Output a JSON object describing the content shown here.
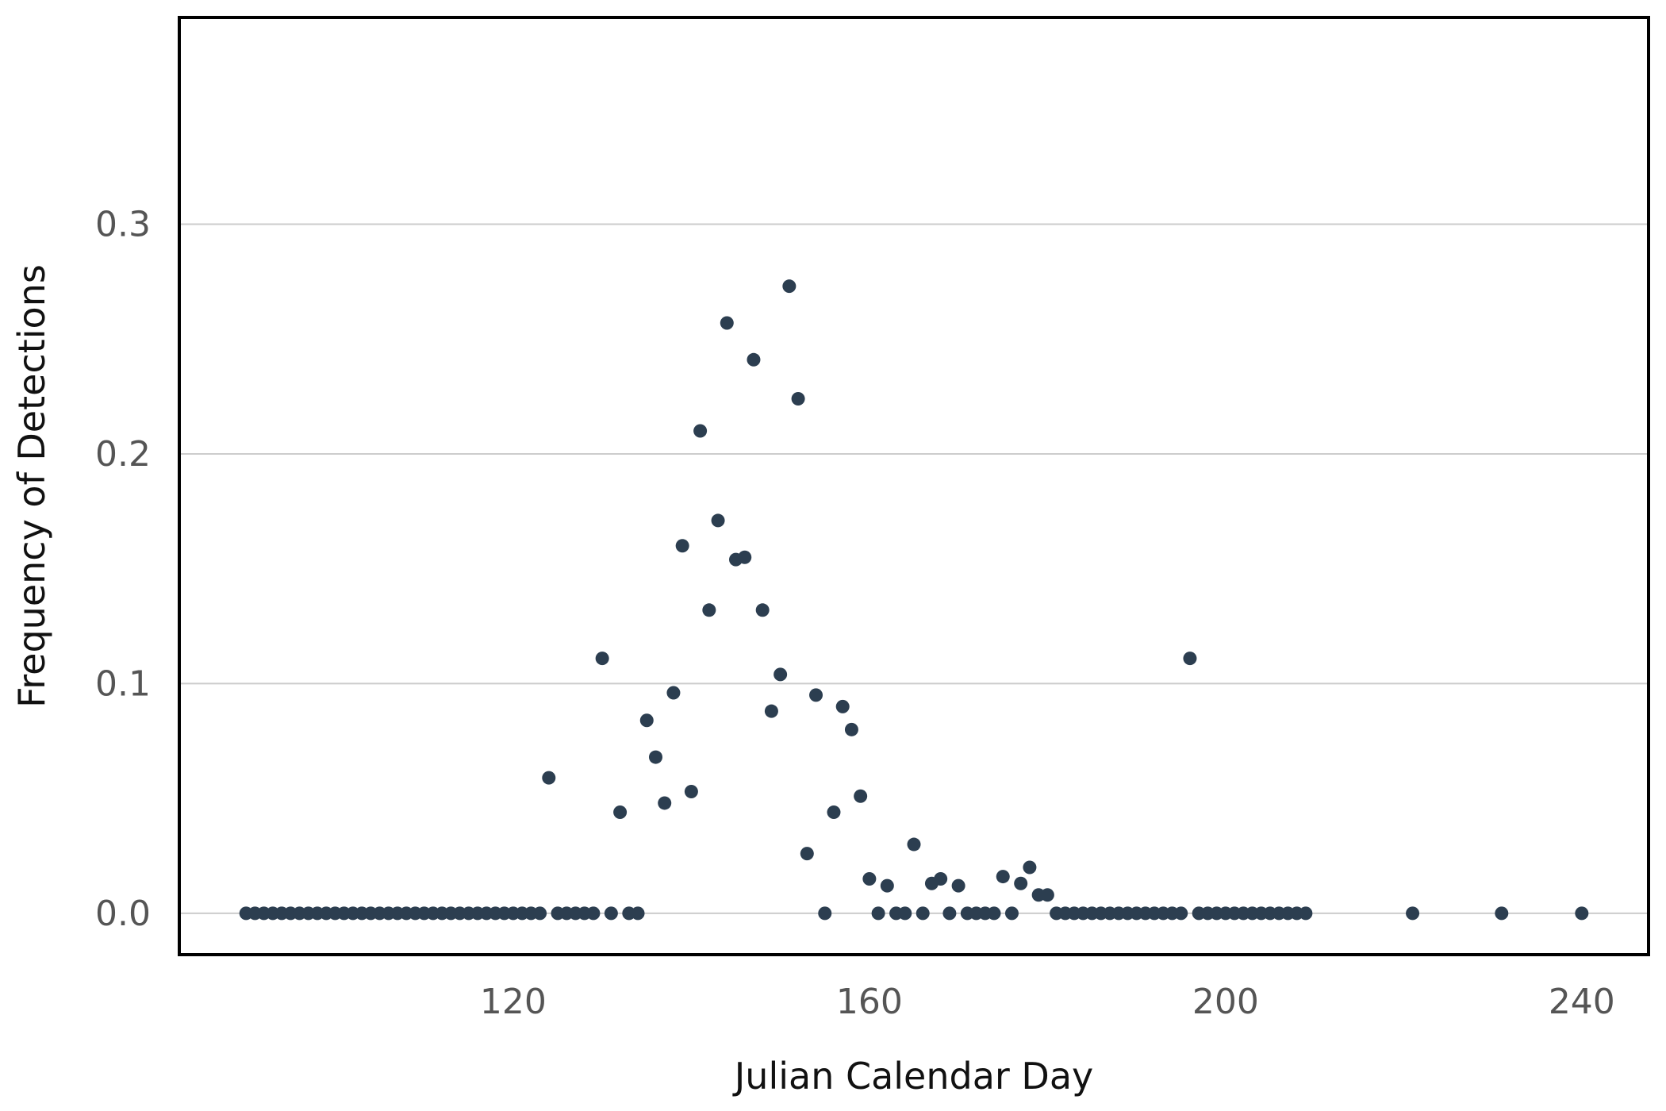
{
  "chart_data": {
    "type": "scatter",
    "title": "",
    "xlabel": "Julian Calendar Day",
    "ylabel": "Frequency of Detections",
    "xlim": [
      82.5,
      247.5
    ],
    "ylim": [
      -0.018,
      0.39
    ],
    "x_ticks": [
      120,
      160,
      200,
      240
    ],
    "y_ticks": [
      0.0,
      0.1,
      0.2,
      0.3
    ],
    "x_tick_labels": [
      "120",
      "160",
      "200",
      "240"
    ],
    "y_tick_labels": [
      "0.0",
      "0.1",
      "0.2",
      "0.3"
    ],
    "grid": "horizontal",
    "legend": "none",
    "colors": {
      "point": "#2c3e50",
      "grid": "#cccccc",
      "frame": "#000000"
    },
    "x": [
      90,
      91,
      92,
      93,
      94,
      95,
      96,
      97,
      98,
      99,
      100,
      101,
      102,
      103,
      104,
      105,
      106,
      107,
      108,
      109,
      110,
      111,
      112,
      113,
      114,
      115,
      116,
      117,
      118,
      119,
      120,
      121,
      122,
      123,
      124,
      125,
      126,
      127,
      128,
      129,
      130,
      131,
      132,
      133,
      134,
      135,
      136,
      137,
      138,
      139,
      140,
      141,
      142,
      143,
      144,
      145,
      146,
      147,
      148,
      149,
      150,
      151,
      152,
      153,
      154,
      155,
      156,
      157,
      158,
      159,
      160,
      161,
      162,
      163,
      164,
      165,
      166,
      167,
      168,
      169,
      170,
      171,
      172,
      173,
      174,
      175,
      176,
      177,
      178,
      179,
      180,
      181,
      182,
      183,
      184,
      185,
      186,
      187,
      188,
      189,
      190,
      191,
      192,
      193,
      194,
      195,
      196,
      197,
      198,
      199,
      200,
      201,
      202,
      203,
      204,
      205,
      206,
      207,
      208,
      209,
      221,
      231,
      240
    ],
    "y": [
      0,
      0,
      0,
      0,
      0,
      0,
      0,
      0,
      0,
      0,
      0,
      0,
      0,
      0,
      0,
      0,
      0,
      0,
      0,
      0,
      0,
      0,
      0,
      0,
      0,
      0,
      0,
      0,
      0,
      0,
      0,
      0,
      0,
      0,
      0.059,
      0,
      0,
      0,
      0,
      0,
      0.111,
      0,
      0.044,
      0,
      0,
      0.084,
      0.068,
      0.048,
      0.096,
      0.16,
      0.053,
      0.21,
      0.132,
      0.171,
      0.257,
      0.154,
      0.155,
      0.241,
      0.132,
      0.088,
      0.104,
      0.273,
      0.224,
      0.026,
      0.095,
      0,
      0.044,
      0.09,
      0.08,
      0.051,
      0.015,
      0,
      0.012,
      0,
      0,
      0.03,
      0,
      0.013,
      0.015,
      0,
      0.012,
      0,
      0,
      0,
      0,
      0.016,
      0,
      0.013,
      0.02,
      0.008,
      0.008,
      0,
      0,
      0,
      0,
      0,
      0,
      0,
      0,
      0,
      0,
      0,
      0,
      0,
      0,
      0,
      0.111,
      0,
      0,
      0,
      0,
      0,
      0,
      0,
      0,
      0,
      0,
      0,
      0,
      0,
      0,
      0,
      0
    ]
  }
}
